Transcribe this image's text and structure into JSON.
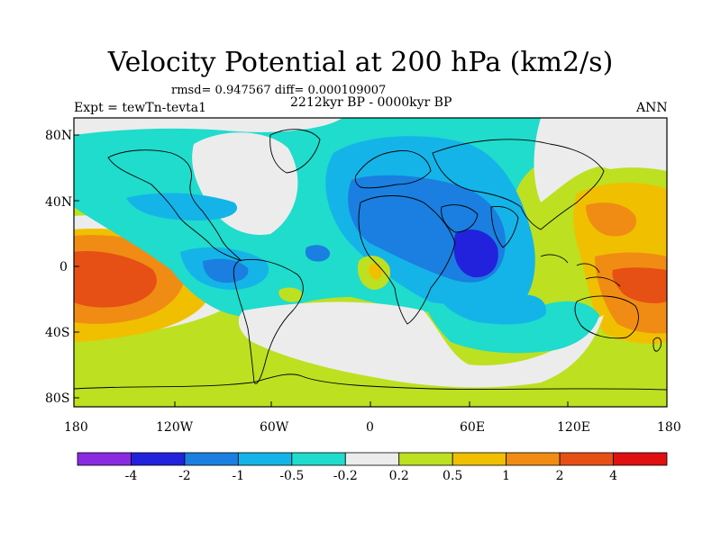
{
  "title": "Velocity Potential at 200 hPa (km2/s)",
  "stats": "rmsd= 0.947567 diff= 0.000109007",
  "period": "2212kyr BP - 0000kyr BP",
  "experiment": "Expt = tewTn-tevta1",
  "season": "ANN",
  "lat_labels": [
    "80N",
    "40N",
    "0",
    "40S",
    "80S"
  ],
  "lon_labels": [
    "180",
    "120W",
    "60W",
    "0",
    "60E",
    "120E",
    "180"
  ],
  "colorbar": {
    "levels": [
      "-4",
      "-2",
      "-1",
      "-0.5",
      "-0.2",
      "0.2",
      "0.5",
      "1",
      "2",
      "4"
    ],
    "colors": [
      "#8a2be2",
      "#2222dd",
      "#1a7fe0",
      "#14b4e8",
      "#1fdccc",
      "#ececec",
      "#bde021",
      "#f0c000",
      "#f08c14",
      "#e65014",
      "#e01010"
    ]
  },
  "field_colors": {
    "neg4": "#2222dd",
    "neg2": "#1a7fe0",
    "neg1": "#14b4e8",
    "neg05": "#1fdccc",
    "zero": "#ececec",
    "pos02": "#bde021",
    "pos05": "#f0c000",
    "pos1": "#f08c14",
    "pos2": "#e65014"
  }
}
